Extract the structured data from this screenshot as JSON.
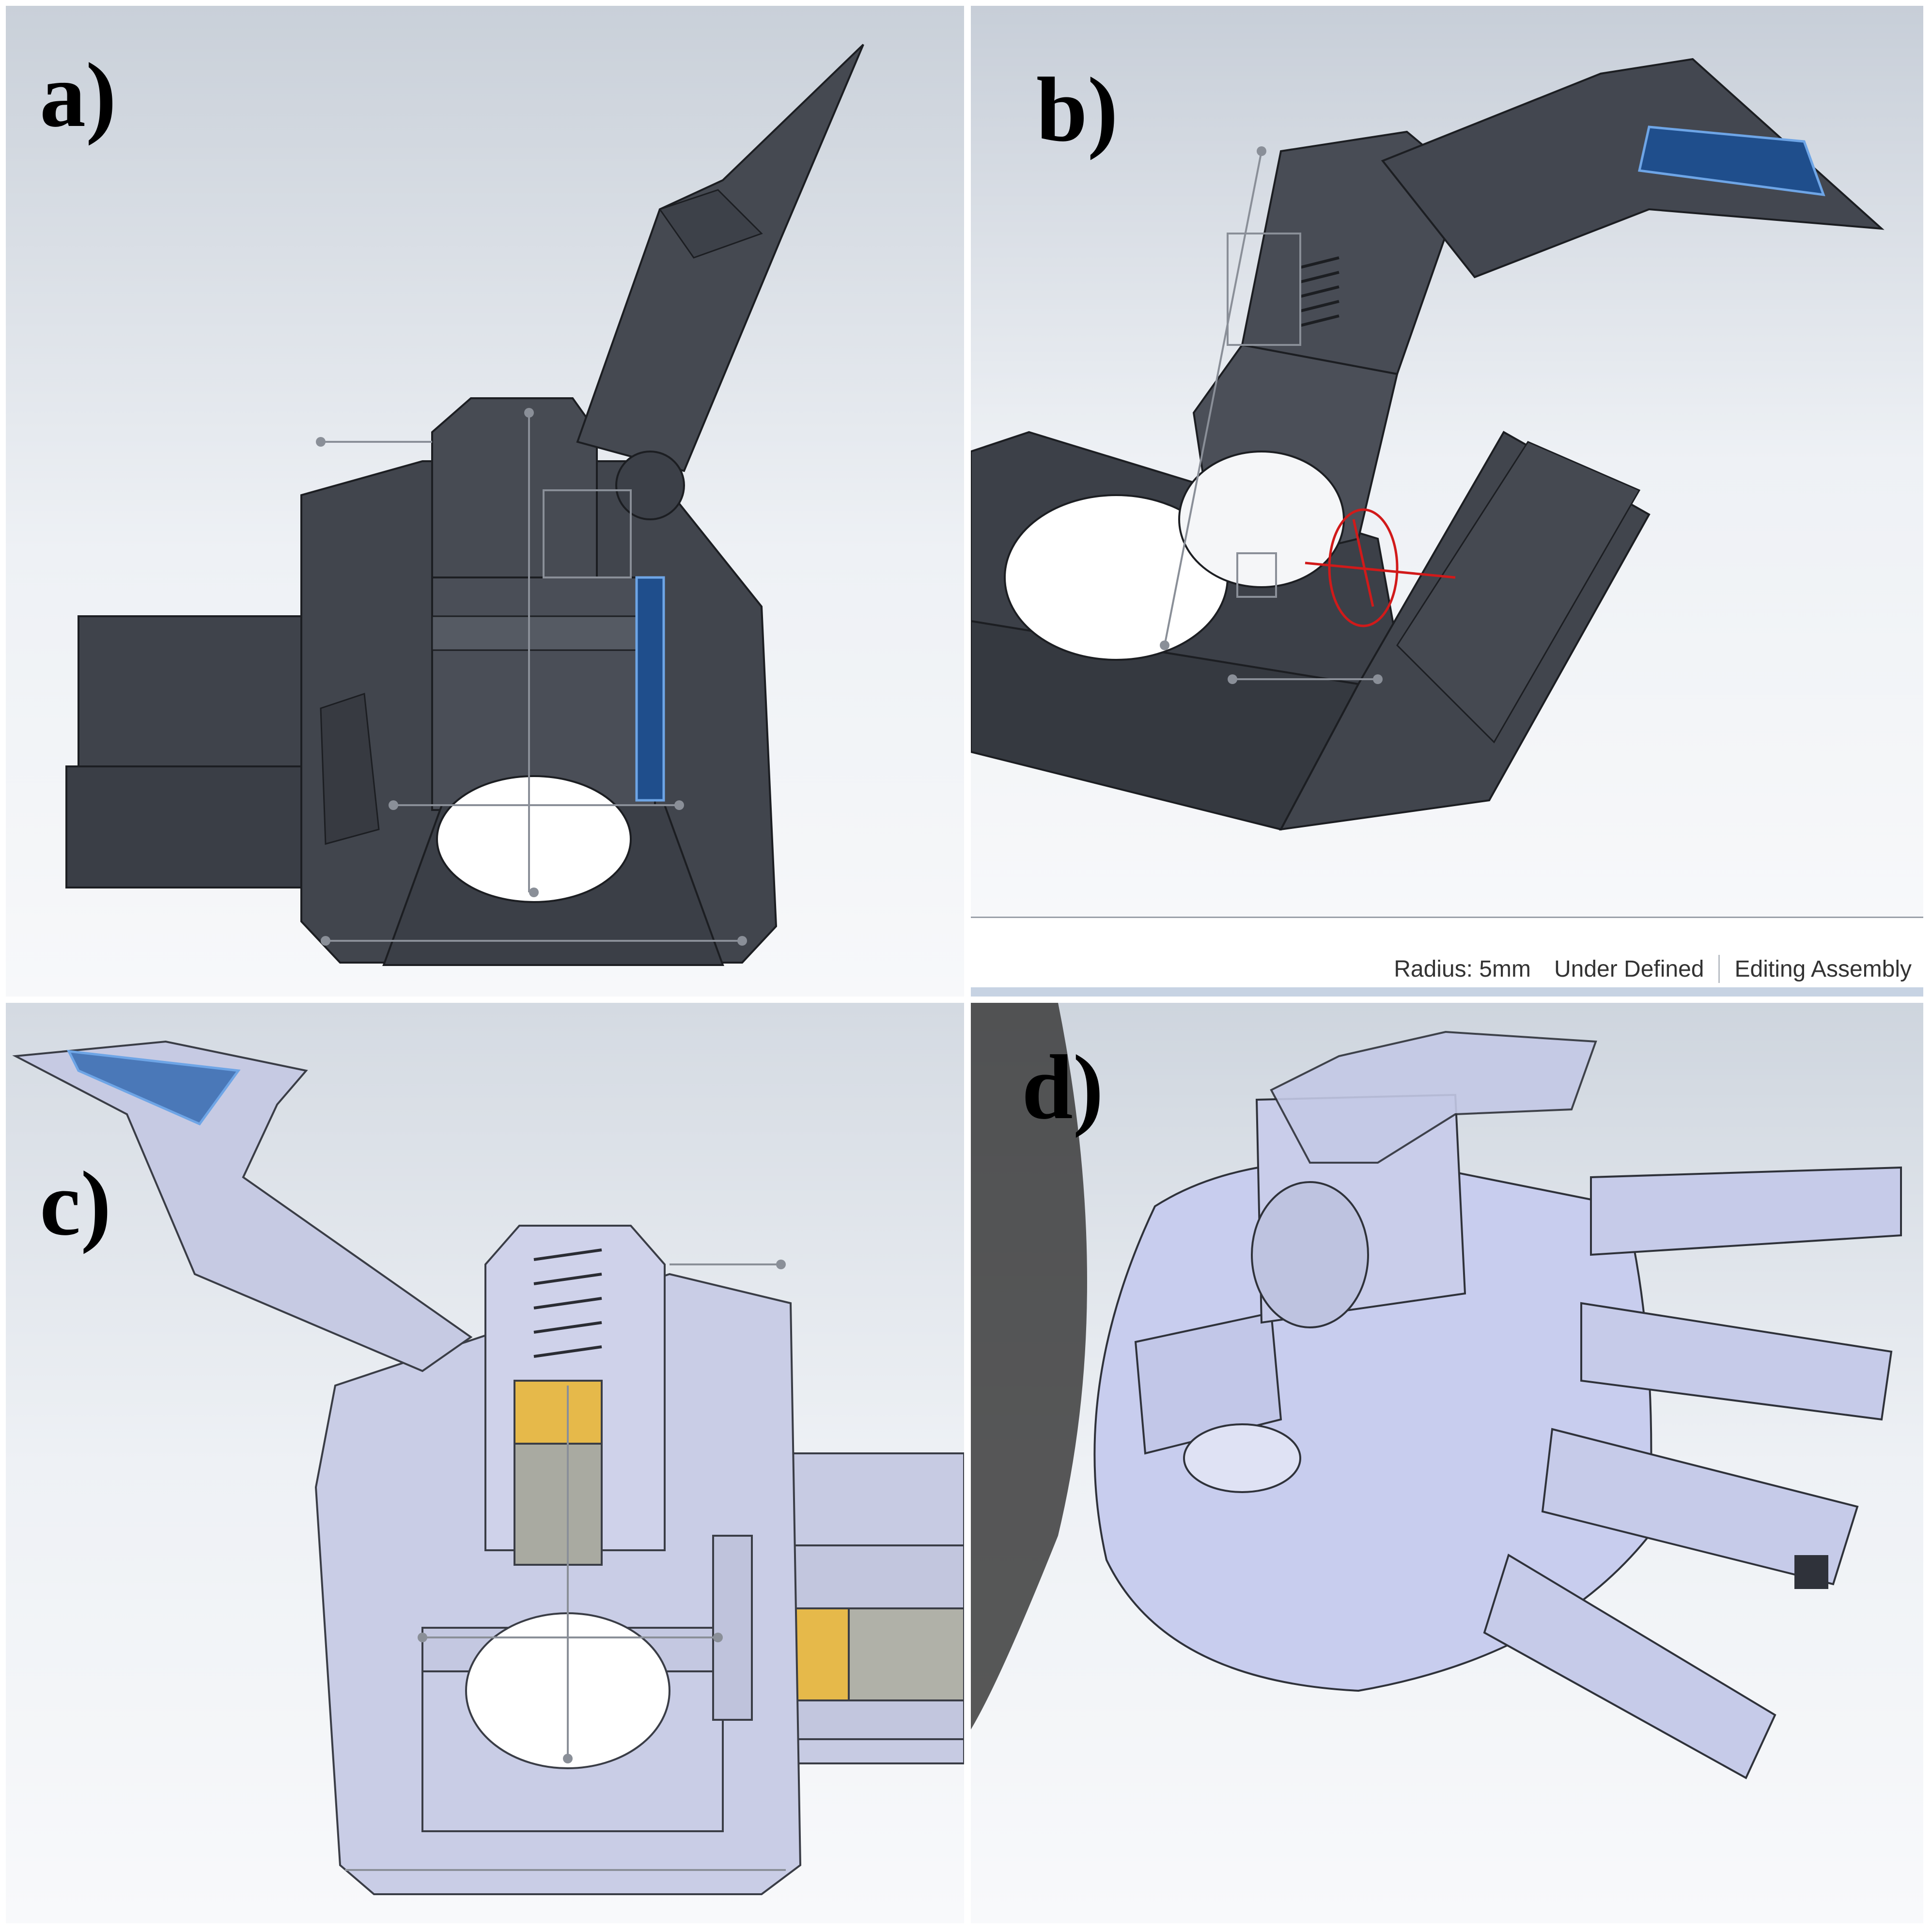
{
  "panels": {
    "a": {
      "label": "a)"
    },
    "b": {
      "label": "b)",
      "status_bar": {
        "radius": "Radius: 5mm",
        "definition": "Under Defined",
        "mode": "Editing Assembly"
      }
    },
    "c": {
      "label": "c)"
    },
    "d": {
      "label": "d)"
    }
  },
  "colors": {
    "dark_part": "#3c4048",
    "light_part": "#c9cde6",
    "selected_face": "#1f4e8c",
    "motor_gold": "#e6b94a",
    "background": "#eef1f6"
  }
}
